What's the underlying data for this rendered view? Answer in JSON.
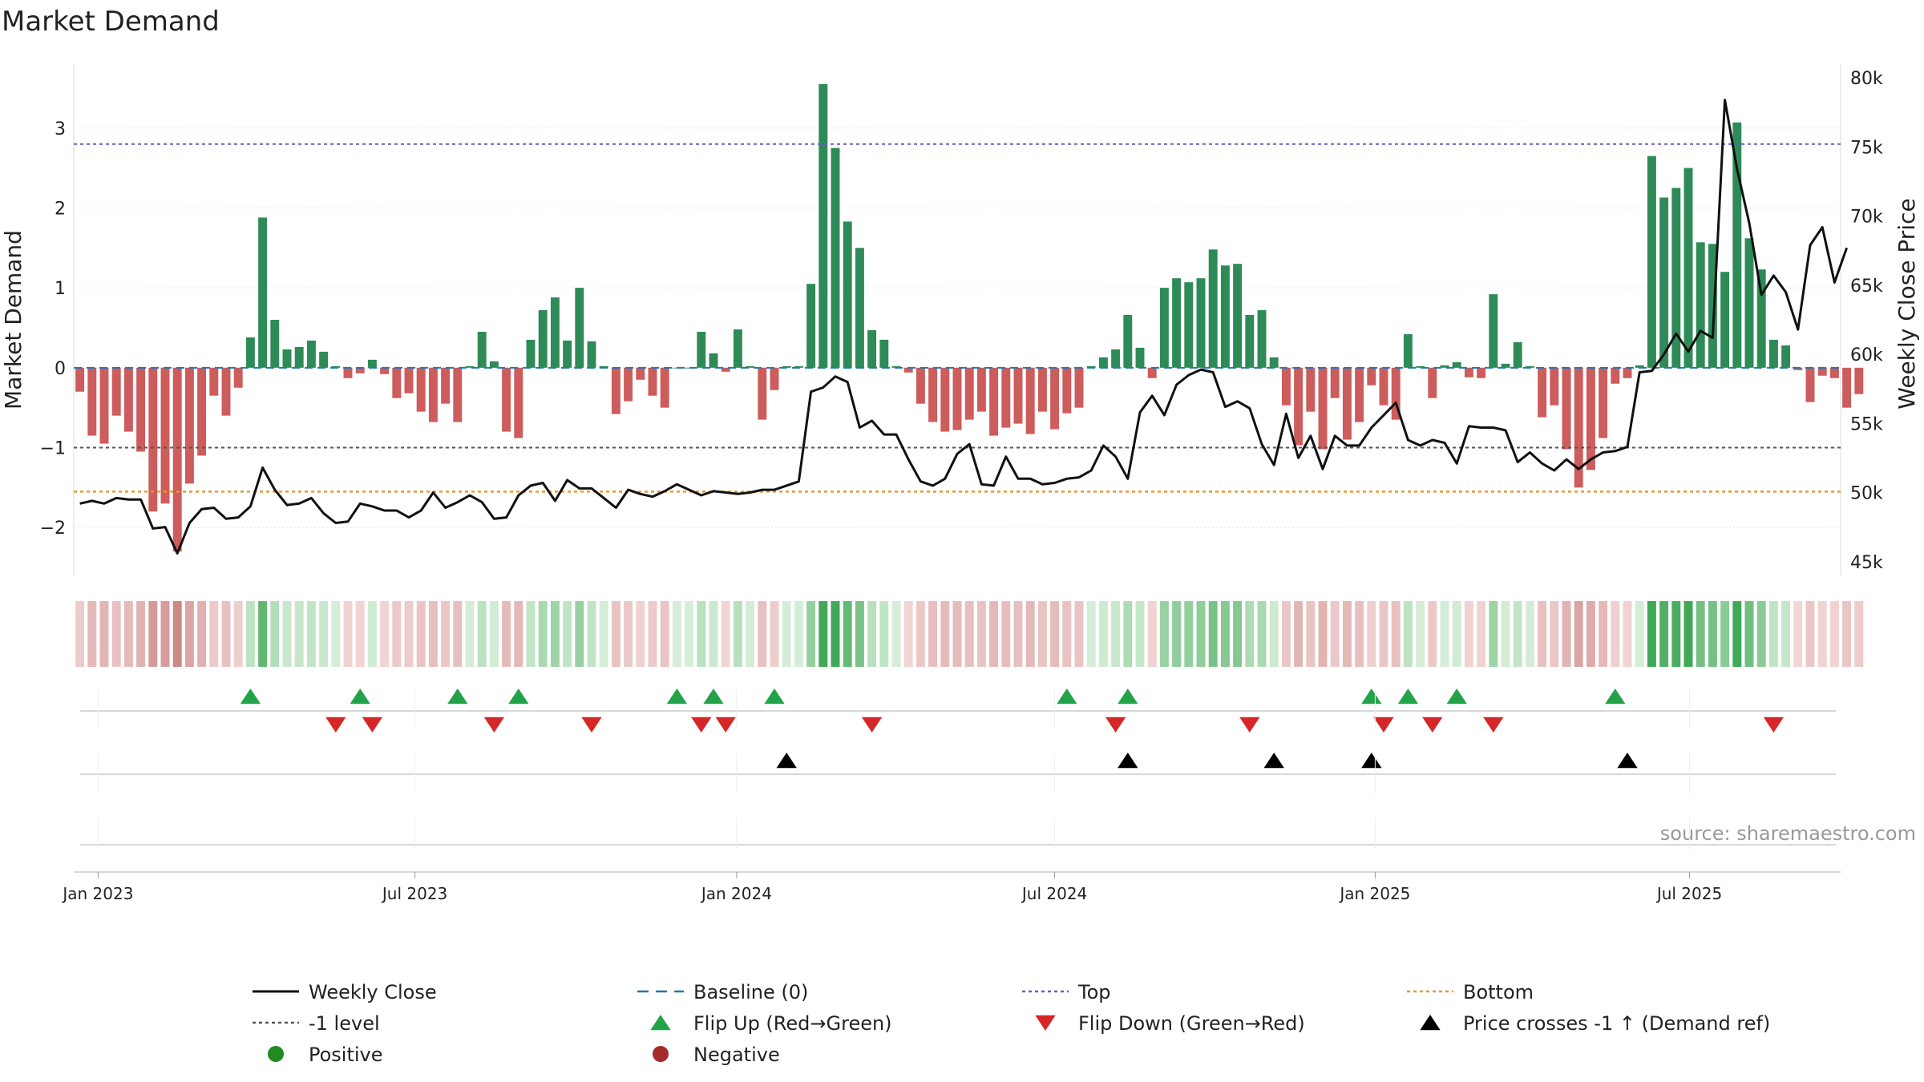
{
  "title": "Market Demand",
  "source": "source: sharemaestro.com",
  "colors": {
    "positive": "#2e8b57",
    "negative": "#cd5c5c",
    "flip_up": "#22a34a",
    "flip_down": "#d62728",
    "cross": "#000000",
    "top": "#6a5acd",
    "bottom": "#e69b2b",
    "minus1": "#555555",
    "baseline": "#1f77b4",
    "price": "#111111"
  },
  "chart_data": {
    "type": "bar",
    "title": "Market Demand",
    "ylabel_left": "Market Demand",
    "ylabel_right": "Weekly Close Price",
    "ylim_left": [
      -2.6,
      3.8
    ],
    "ylim_right": [
      44000,
      81000
    ],
    "yticks_left": [
      "3",
      "2",
      "1",
      "0",
      "−1",
      "−2"
    ],
    "yticks_left_values": [
      3,
      2,
      1,
      0,
      -1,
      -2
    ],
    "yticks_right": [
      "80k",
      "75k",
      "70k",
      "65k",
      "60k",
      "55k",
      "50k",
      "45k"
    ],
    "yticks_right_values": [
      80000,
      75000,
      70000,
      65000,
      60000,
      55000,
      50000,
      45000
    ],
    "x_start": "2022-12-19",
    "week_count": 145,
    "xticks": [
      {
        "label": "Jan 2023",
        "week": 2
      },
      {
        "label": "Jul 2023",
        "week": 28
      },
      {
        "label": "Jan 2024",
        "week": 54.4
      },
      {
        "label": "Jul 2024",
        "week": 80.5
      },
      {
        "label": "Jan 2025",
        "week": 106.8
      },
      {
        "label": "Jul 2025",
        "week": 132.6
      }
    ],
    "levels": {
      "top": 2.8,
      "bottom": -1.55,
      "minus1": -1.0,
      "baseline": 0
    },
    "demand": [
      -0.3,
      -0.85,
      -0.95,
      -0.6,
      -0.8,
      -1.05,
      -1.8,
      -1.7,
      -2.3,
      -1.45,
      -1.1,
      -0.35,
      -0.6,
      -0.25,
      0.38,
      1.88,
      0.6,
      0.23,
      0.26,
      0.34,
      0.2,
      0.02,
      -0.13,
      -0.07,
      0.1,
      -0.08,
      -0.38,
      -0.32,
      -0.55,
      -0.68,
      -0.45,
      -0.68,
      0.02,
      0.45,
      0.08,
      -0.8,
      -0.88,
      0.35,
      0.72,
      0.88,
      0.34,
      1.0,
      0.33,
      0.02,
      -0.58,
      -0.42,
      -0.15,
      -0.35,
      -0.5,
      0.0,
      0.0,
      0.45,
      0.18,
      -0.05,
      0.48,
      0.02,
      -0.65,
      -0.28,
      0.02,
      0.02,
      1.05,
      3.55,
      2.75,
      1.83,
      1.5,
      0.47,
      0.35,
      0.02,
      -0.06,
      -0.45,
      -0.68,
      -0.8,
      -0.78,
      -0.65,
      -0.55,
      -0.85,
      -0.75,
      -0.7,
      -0.83,
      -0.55,
      -0.77,
      -0.57,
      -0.5,
      0.02,
      0.13,
      0.23,
      0.66,
      0.25,
      -0.13,
      1.0,
      1.12,
      1.07,
      1.12,
      1.48,
      1.28,
      1.3,
      0.66,
      0.72,
      0.13,
      -0.47,
      -0.97,
      -0.55,
      -1.02,
      -0.38,
      -0.9,
      -0.68,
      -0.22,
      -0.47,
      -0.65,
      0.42,
      0.02,
      -0.38,
      0.03,
      0.07,
      -0.12,
      -0.13,
      0.92,
      0.05,
      0.32,
      0.02,
      -0.62,
      -0.47,
      -1.02,
      -1.5,
      -1.28,
      -0.88,
      -0.2,
      -0.13,
      0.03,
      2.65,
      2.13,
      2.25,
      2.5,
      1.57,
      1.55,
      1.2,
      3.07,
      1.62,
      1.23,
      0.35,
      0.28,
      -0.03,
      -0.43,
      -0.1,
      -0.13,
      -0.5,
      -0.33
    ],
    "price": [
      49200,
      49400,
      49200,
      49600,
      49500,
      49500,
      47400,
      47500,
      45600,
      47800,
      48800,
      48900,
      48100,
      48200,
      49000,
      51800,
      50200,
      49100,
      49200,
      49600,
      48500,
      47800,
      47900,
      49200,
      49000,
      48700,
      48700,
      48200,
      48700,
      50000,
      48900,
      49300,
      49800,
      49300,
      48100,
      48200,
      49800,
      50500,
      50700,
      49400,
      50900,
      50300,
      50300,
      49600,
      48900,
      50200,
      49900,
      49700,
      50100,
      50600,
      50200,
      49800,
      50100,
      50000,
      49900,
      50000,
      50200,
      50200,
      50500,
      50800,
      57300,
      57600,
      58400,
      58000,
      54700,
      55200,
      54200,
      54200,
      52400,
      50800,
      50500,
      51000,
      52800,
      53500,
      50600,
      50500,
      52600,
      51000,
      51000,
      50600,
      50700,
      51000,
      51100,
      51600,
      53400,
      52600,
      51000,
      55800,
      57000,
      55600,
      57800,
      58500,
      58900,
      58700,
      56200,
      56600,
      56100,
      53500,
      52000,
      55700,
      52500,
      54100,
      51700,
      54100,
      53400,
      53400,
      54700,
      55600,
      56500,
      53800,
      53400,
      53800,
      53600,
      52100,
      54800,
      54700,
      54700,
      54500,
      52200,
      52900,
      52100,
      51600,
      52400,
      51700,
      52400,
      52900,
      53000,
      53300,
      58700,
      58800,
      60000,
      61500,
      60200,
      61700,
      61200,
      78400,
      73400,
      69500,
      64300,
      65700,
      64500,
      61800,
      67900,
      69200,
      65200,
      67700
    ],
    "strip_bands": [
      {
        "cls": "neg-mid"
      },
      {
        "cls": "neg-mid"
      },
      {
        "cls": "neg-mid"
      },
      {
        "cls": "neg-mid"
      },
      {
        "cls": "neg-mid"
      },
      {
        "cls": "neg-mid"
      },
      {
        "cls": "neg-strong"
      },
      {
        "cls": "neg-strong"
      },
      {
        "cls": "neg-strong"
      },
      {
        "cls": "neg-mid"
      },
      {
        "cls": "neg-mid"
      },
      {
        "cls": "neg-light"
      },
      {
        "cls": "neg-light"
      },
      {
        "cls": "neg-light"
      },
      {
        "cls": "pos-light"
      },
      {
        "cls": "pos-strong"
      }
    ],
    "flip_up_weeks": [
      14,
      23,
      31,
      36,
      49,
      52,
      57,
      81,
      86,
      106,
      109,
      113,
      126
    ],
    "flip_down_weeks": [
      21,
      24,
      34,
      42,
      51,
      53,
      65,
      85,
      96,
      107,
      111,
      116,
      139
    ],
    "cross_weeks": [
      58,
      86,
      98,
      106,
      127
    ]
  },
  "legend": [
    {
      "label": "Weekly Close",
      "kind": "line-solid",
      "color": "#111111"
    },
    {
      "label": "Baseline (0)",
      "kind": "line-dashed",
      "color": "#1f77b4"
    },
    {
      "label": "Top",
      "kind": "line-dotted",
      "color": "#6a5acd"
    },
    {
      "label": "Bottom",
      "kind": "line-dotted",
      "color": "#e69b2b"
    },
    {
      "label": "-1 level",
      "kind": "line-dotted",
      "color": "#555555"
    },
    {
      "label": "Flip Up (Red→Green)",
      "kind": "tri-up",
      "color": "#22a34a"
    },
    {
      "label": "Flip Down (Green→Red)",
      "kind": "tri-down",
      "color": "#d62728"
    },
    {
      "label": "Price crosses -1 ↑ (Demand ref)",
      "kind": "tri-up",
      "color": "#000000"
    },
    {
      "label": "Positive",
      "kind": "dot",
      "color": "#228b22"
    },
    {
      "label": "Negative",
      "kind": "dot",
      "color": "#a52a2a"
    }
  ]
}
